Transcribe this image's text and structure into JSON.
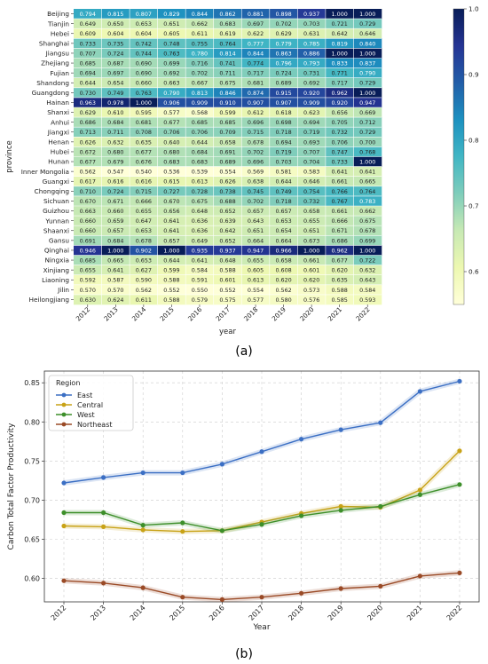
{
  "panel_labels": {
    "a": "(a)",
    "b": "(b)"
  },
  "chart_data": [
    {
      "type": "heatmap",
      "panel": "(a)",
      "title": "",
      "xlabel": "year",
      "ylabel": "province",
      "x": [
        "2012",
        "2013",
        "2014",
        "2015",
        "2016",
        "2017",
        "2018",
        "2019",
        "2020",
        "2021",
        "2022"
      ],
      "y": [
        "Beijing",
        "Tianjin",
        "Hebei",
        "Shanghai",
        "Jiangsu",
        "Zhejiang",
        "Fujian",
        "Shandong",
        "Guangdong",
        "Hainan",
        "Shanxi",
        "Anhui",
        "Jiangxi",
        "Henan",
        "Hubei",
        "Hunan",
        "Inner Mongolia",
        "Guangxi",
        "Chongqing",
        "Sichuan",
        "Guizhou",
        "Yunnan",
        "Shaanxi",
        "Gansu",
        "Qinghai",
        "Ningxia",
        "Xinjiang",
        "Liaoning",
        "Jilin",
        "Heilongjiang"
      ],
      "values": [
        [
          0.794,
          0.815,
          0.807,
          0.829,
          0.844,
          0.862,
          0.881,
          0.898,
          0.937,
          1.0,
          1.0
        ],
        [
          0.649,
          0.65,
          0.653,
          0.651,
          0.662,
          0.683,
          0.697,
          0.702,
          0.703,
          0.721,
          0.729
        ],
        [
          0.609,
          0.604,
          0.604,
          0.605,
          0.611,
          0.619,
          0.622,
          0.629,
          0.631,
          0.642,
          0.646
        ],
        [
          0.733,
          0.735,
          0.742,
          0.748,
          0.755,
          0.764,
          0.777,
          0.779,
          0.785,
          0.819,
          0.84
        ],
        [
          0.707,
          0.724,
          0.744,
          0.763,
          0.78,
          0.814,
          0.844,
          0.863,
          0.886,
          1.0,
          1.0
        ],
        [
          0.685,
          0.687,
          0.69,
          0.699,
          0.716,
          0.741,
          0.774,
          0.796,
          0.793,
          0.833,
          0.837
        ],
        [
          0.694,
          0.697,
          0.69,
          0.692,
          0.702,
          0.711,
          0.717,
          0.724,
          0.731,
          0.771,
          0.79
        ],
        [
          0.644,
          0.654,
          0.66,
          0.663,
          0.667,
          0.675,
          0.681,
          0.689,
          0.692,
          0.717,
          0.729
        ],
        [
          0.73,
          0.749,
          0.763,
          0.79,
          0.813,
          0.846,
          0.874,
          0.915,
          0.92,
          0.962,
          1.0
        ],
        [
          0.963,
          0.978,
          1.0,
          0.906,
          0.909,
          0.91,
          0.907,
          0.907,
          0.909,
          0.92,
          0.947
        ],
        [
          0.629,
          0.61,
          0.595,
          0.577,
          0.568,
          0.599,
          0.612,
          0.618,
          0.623,
          0.656,
          0.669
        ],
        [
          0.686,
          0.684,
          0.681,
          0.677,
          0.685,
          0.685,
          0.696,
          0.698,
          0.694,
          0.705,
          0.712
        ],
        [
          0.713,
          0.711,
          0.708,
          0.706,
          0.706,
          0.709,
          0.715,
          0.718,
          0.719,
          0.732,
          0.729
        ],
        [
          0.626,
          0.632,
          0.635,
          0.64,
          0.644,
          0.658,
          0.678,
          0.694,
          0.693,
          0.706,
          0.7
        ],
        [
          0.672,
          0.68,
          0.677,
          0.68,
          0.684,
          0.691,
          0.702,
          0.719,
          0.707,
          0.747,
          0.768
        ],
        [
          0.677,
          0.679,
          0.676,
          0.683,
          0.683,
          0.689,
          0.696,
          0.703,
          0.704,
          0.733,
          1.0
        ],
        [
          0.562,
          0.547,
          0.54,
          0.536,
          0.539,
          0.554,
          0.569,
          0.581,
          0.583,
          0.641,
          0.641
        ],
        [
          0.617,
          0.616,
          0.616,
          0.615,
          0.613,
          0.626,
          0.638,
          0.644,
          0.646,
          0.661,
          0.665
        ],
        [
          0.71,
          0.724,
          0.715,
          0.727,
          0.728,
          0.738,
          0.745,
          0.749,
          0.754,
          0.766,
          0.764
        ],
        [
          0.67,
          0.671,
          0.666,
          0.67,
          0.675,
          0.688,
          0.702,
          0.718,
          0.732,
          0.767,
          0.783
        ],
        [
          0.663,
          0.66,
          0.655,
          0.656,
          0.648,
          0.652,
          0.657,
          0.657,
          0.658,
          0.661,
          0.662
        ],
        [
          0.66,
          0.659,
          0.647,
          0.641,
          0.636,
          0.639,
          0.643,
          0.653,
          0.655,
          0.666,
          0.675
        ],
        [
          0.66,
          0.657,
          0.653,
          0.641,
          0.636,
          0.642,
          0.651,
          0.654,
          0.651,
          0.671,
          0.678
        ],
        [
          0.691,
          0.684,
          0.678,
          0.657,
          0.649,
          0.652,
          0.664,
          0.664,
          0.673,
          0.686,
          0.699
        ],
        [
          0.946,
          1.0,
          0.902,
          1.0,
          0.935,
          0.937,
          0.947,
          0.966,
          1.0,
          0.962,
          1.0
        ],
        [
          0.685,
          0.665,
          0.653,
          0.644,
          0.641,
          0.648,
          0.655,
          0.658,
          0.661,
          0.677,
          0.722
        ],
        [
          0.655,
          0.641,
          0.627,
          0.599,
          0.584,
          0.588,
          0.605,
          0.608,
          0.601,
          0.62,
          0.632
        ],
        [
          0.592,
          0.587,
          0.59,
          0.588,
          0.591,
          0.601,
          0.613,
          0.62,
          0.62,
          0.635,
          0.643
        ],
        [
          0.57,
          0.57,
          0.562,
          0.552,
          0.55,
          0.552,
          0.554,
          0.562,
          0.573,
          0.588,
          0.584
        ],
        [
          0.63,
          0.624,
          0.611,
          0.588,
          0.579,
          0.575,
          0.577,
          0.58,
          0.576,
          0.585,
          0.593
        ]
      ],
      "colorbar": {
        "range": [
          0.55,
          1.0
        ],
        "ticks": [
          "0.6",
          "0.7",
          "0.8",
          "0.9",
          "1.0"
        ],
        "colormap": "YlGnBu"
      }
    },
    {
      "type": "line",
      "panel": "(b)",
      "title": "",
      "xlabel": "Year",
      "ylabel": "Carbon Total Factor Productivity",
      "x": [
        "2012",
        "2013",
        "2014",
        "2015",
        "2016",
        "2017",
        "2018",
        "2019",
        "2020",
        "2021",
        "2022"
      ],
      "ylim": [
        0.57,
        0.865
      ],
      "yticks": [
        "0.60",
        "0.65",
        "0.70",
        "0.75",
        "0.80",
        "0.85"
      ],
      "grid": true,
      "legend": {
        "title": "Region",
        "placement": "top-left"
      },
      "series": [
        {
          "name": "East",
          "color": "#3b6fc4",
          "values": [
            0.722,
            0.729,
            0.735,
            0.735,
            0.746,
            0.762,
            0.778,
            0.79,
            0.799,
            0.839,
            0.852
          ]
        },
        {
          "name": "Central",
          "color": "#c8a216",
          "values": [
            0.667,
            0.666,
            0.662,
            0.66,
            0.661,
            0.672,
            0.683,
            0.692,
            0.691,
            0.713,
            0.763
          ]
        },
        {
          "name": "West",
          "color": "#3d8f2a",
          "values": [
            0.684,
            0.684,
            0.668,
            0.671,
            0.661,
            0.669,
            0.68,
            0.687,
            0.692,
            0.707,
            0.72
          ]
        },
        {
          "name": "Northeast",
          "color": "#9a4a26",
          "values": [
            0.597,
            0.594,
            0.588,
            0.576,
            0.573,
            0.576,
            0.581,
            0.587,
            0.59,
            0.603,
            0.607
          ]
        }
      ]
    }
  ]
}
